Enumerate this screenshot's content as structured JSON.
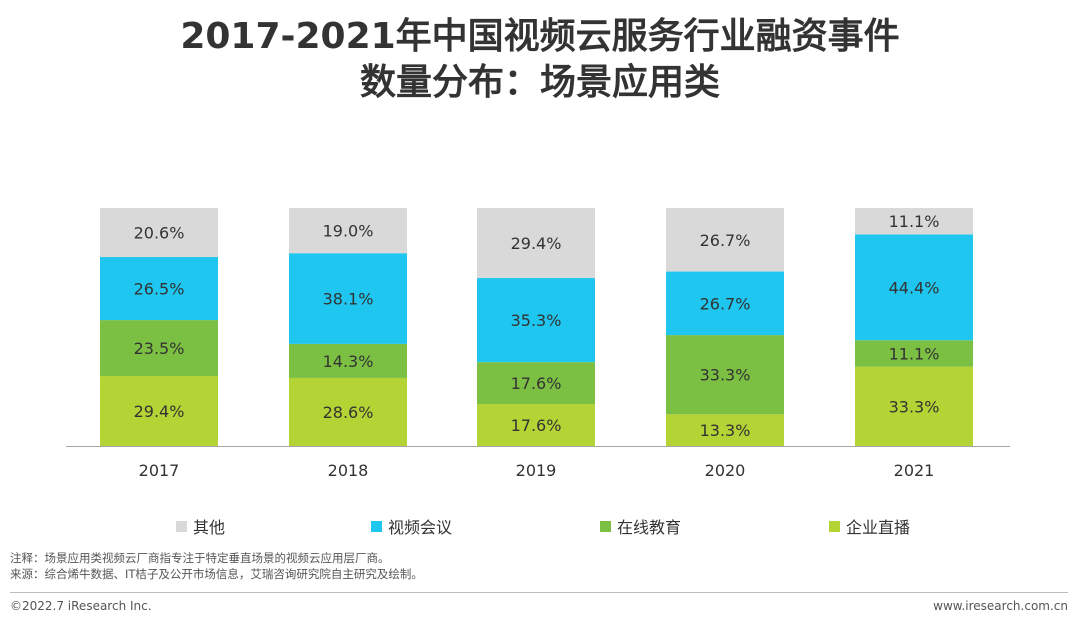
{
  "title": {
    "line1": "2017-2021年中国视频云服务行业融资事件",
    "line2": "数量分布：场景应用类"
  },
  "chart_data": {
    "type": "bar",
    "stacked": true,
    "categories": [
      "2017",
      "2018",
      "2019",
      "2020",
      "2021"
    ],
    "series": [
      {
        "name": "企业直播",
        "color": "#b4d334",
        "values": [
          29.4,
          28.6,
          17.6,
          13.3,
          33.3
        ],
        "labels": [
          "29.4%",
          "28.6%",
          "17.6%",
          "13.3%",
          "33.3%"
        ]
      },
      {
        "name": "在线教育",
        "color": "#7bc043",
        "values": [
          23.5,
          14.3,
          17.6,
          33.3,
          11.1
        ],
        "labels": [
          "23.5%",
          "14.3%",
          "17.6%",
          "33.3%",
          "11.1%"
        ]
      },
      {
        "name": "视频会议",
        "color": "#1ec6f0",
        "values": [
          26.5,
          38.1,
          35.3,
          26.7,
          44.4
        ],
        "labels": [
          "26.5%",
          "38.1%",
          "35.3%",
          "26.7%",
          "44.4%"
        ]
      },
      {
        "name": "其他",
        "color": "#d9d9d9",
        "values": [
          20.6,
          19.0,
          29.4,
          26.7,
          11.1
        ],
        "labels": [
          "20.6%",
          "19.0%",
          "29.4%",
          "26.7%",
          "11.1%"
        ]
      }
    ],
    "legend_order": [
      "其他",
      "视频会议",
      "在线教育",
      "企业直播"
    ],
    "ylim": [
      0,
      100
    ],
    "unit": "%"
  },
  "notes": {
    "note": "注释：场景应用类视频云厂商指专注于特定垂直场景的视频云应用层厂商。",
    "source": "来源：综合烯牛数据、IT桔子及公开市场信息，艾瑞咨询研究院自主研究及绘制。"
  },
  "footer": {
    "copyright": "©2022.7 iResearch Inc.",
    "website": "www.iresearch.com.cn"
  }
}
